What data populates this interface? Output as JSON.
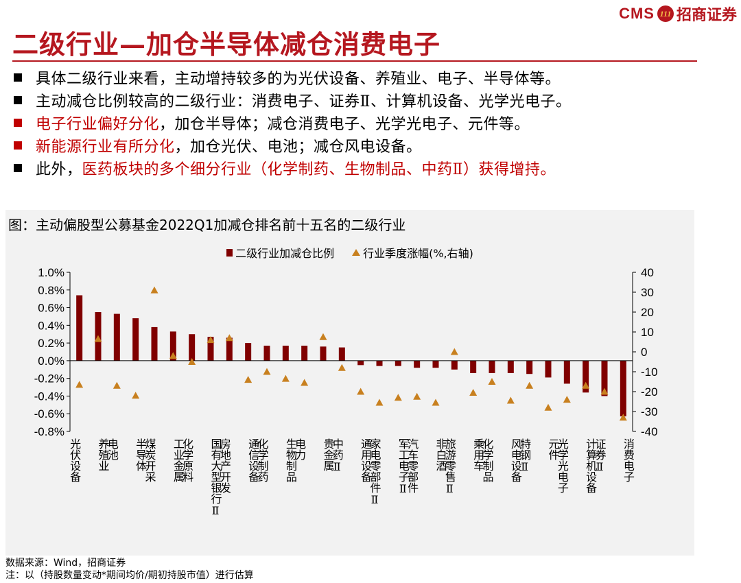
{
  "header": {
    "logo_text": "CMS",
    "logo_badge": "111",
    "logo_cn": "招商证券",
    "title": "二级行业—加仓半导体减仓消费电子"
  },
  "bullets": [
    {
      "marker": "black",
      "plain": "具体二级行业来看，主动增持较多的为光伏设备、养殖业、电子、半导体等。",
      "red_prefix": "",
      "red_suffix": "",
      "tail": ""
    },
    {
      "marker": "black",
      "plain": "主动减仓比例较高的二级行业：消费电子、证券Ⅱ、计算机设备、光学光电子。",
      "red_prefix": "",
      "red_suffix": "",
      "tail": ""
    },
    {
      "marker": "red",
      "plain": "",
      "red_prefix": "电子行业偏好分化",
      "tail": "，加仓半导体；减仓消费电子、光学光电子、元件等。",
      "red_suffix": ""
    },
    {
      "marker": "red",
      "plain": "",
      "red_prefix": "新能源行业有所分化",
      "tail": "，加仓光伏、电池；减仓风电设备。",
      "red_suffix": ""
    },
    {
      "marker": "black",
      "plain": "此外，",
      "red_prefix": "",
      "tail": "",
      "red_suffix": "医药板块的多个细分行业（化学制药、生物制品、中药Ⅱ）获得增持。"
    }
  ],
  "footer": {
    "source": "数据来源：Wind，招商证券",
    "note": "注：以（持股数量变动*期间均价/期初持股市值）进行估算"
  },
  "colors": {
    "bar": "#800000",
    "marker": "#c8801f",
    "accent": "#b5171f"
  },
  "chart_data": {
    "type": "bar",
    "title": "图：主动偏股型公募基金2022Q1加减仓排名前十五名的二级行业",
    "legend": [
      "二级行业加减仓比例",
      "行业季度涨幅(%,右轴)"
    ],
    "legend_position": "top",
    "categories": [
      "光伏设备",
      "养殖业",
      "电池",
      "半导体",
      "煤炭开采",
      "工业金属",
      "化学原料",
      "国有大型银行Ⅱ",
      "房地产开发",
      "通信设备",
      "化学制药",
      "生物制品",
      "电力",
      "贵金属",
      "中药Ⅱ",
      "通用设备",
      "家电零部件Ⅱ",
      "军工电子Ⅱ",
      "汽车零部件",
      "非白酒",
      "旅游零售Ⅱ",
      "乘用车",
      "化学制品",
      "风电设备",
      "特钢Ⅱ",
      "元件",
      "光学光电子",
      "计算机设备",
      "证券Ⅱ",
      "消费电子"
    ],
    "series": [
      {
        "name": "二级行业加减仓比例",
        "type": "bar",
        "axis": "left",
        "values": [
          0.74,
          0.55,
          0.53,
          0.48,
          0.38,
          0.33,
          0.3,
          0.27,
          0.26,
          0.2,
          0.17,
          0.17,
          0.17,
          0.16,
          0.15,
          -0.05,
          -0.06,
          -0.06,
          -0.08,
          -0.08,
          -0.1,
          -0.14,
          -0.14,
          -0.14,
          -0.15,
          -0.19,
          -0.26,
          -0.36,
          -0.4,
          -0.63
        ]
      },
      {
        "name": "行业季度涨幅(%,右轴)",
        "type": "scatter",
        "axis": "right",
        "values": [
          -16.5,
          6.5,
          -17,
          -22,
          31,
          -2,
          -5,
          6,
          7,
          -14,
          -10,
          -13.5,
          -15.5,
          7.5,
          -8,
          -20,
          -25.5,
          -23,
          -22.5,
          -25.5,
          0,
          -20.5,
          -15,
          -24.5,
          -17,
          -28,
          -24,
          -17,
          -20,
          -33
        ]
      }
    ],
    "y_left": {
      "min": -0.8,
      "max": 1.0,
      "ticks": [
        "1.0%",
        "0.8%",
        "0.6%",
        "0.4%",
        "0.2%",
        "0.0%",
        "-0.2%",
        "-0.4%",
        "-0.6%",
        "-0.8%"
      ]
    },
    "y_right": {
      "min": -40,
      "max": 40,
      "ticks": [
        "40",
        "30",
        "20",
        "10",
        "0",
        "-10",
        "-20",
        "-30",
        "-40"
      ]
    }
  }
}
